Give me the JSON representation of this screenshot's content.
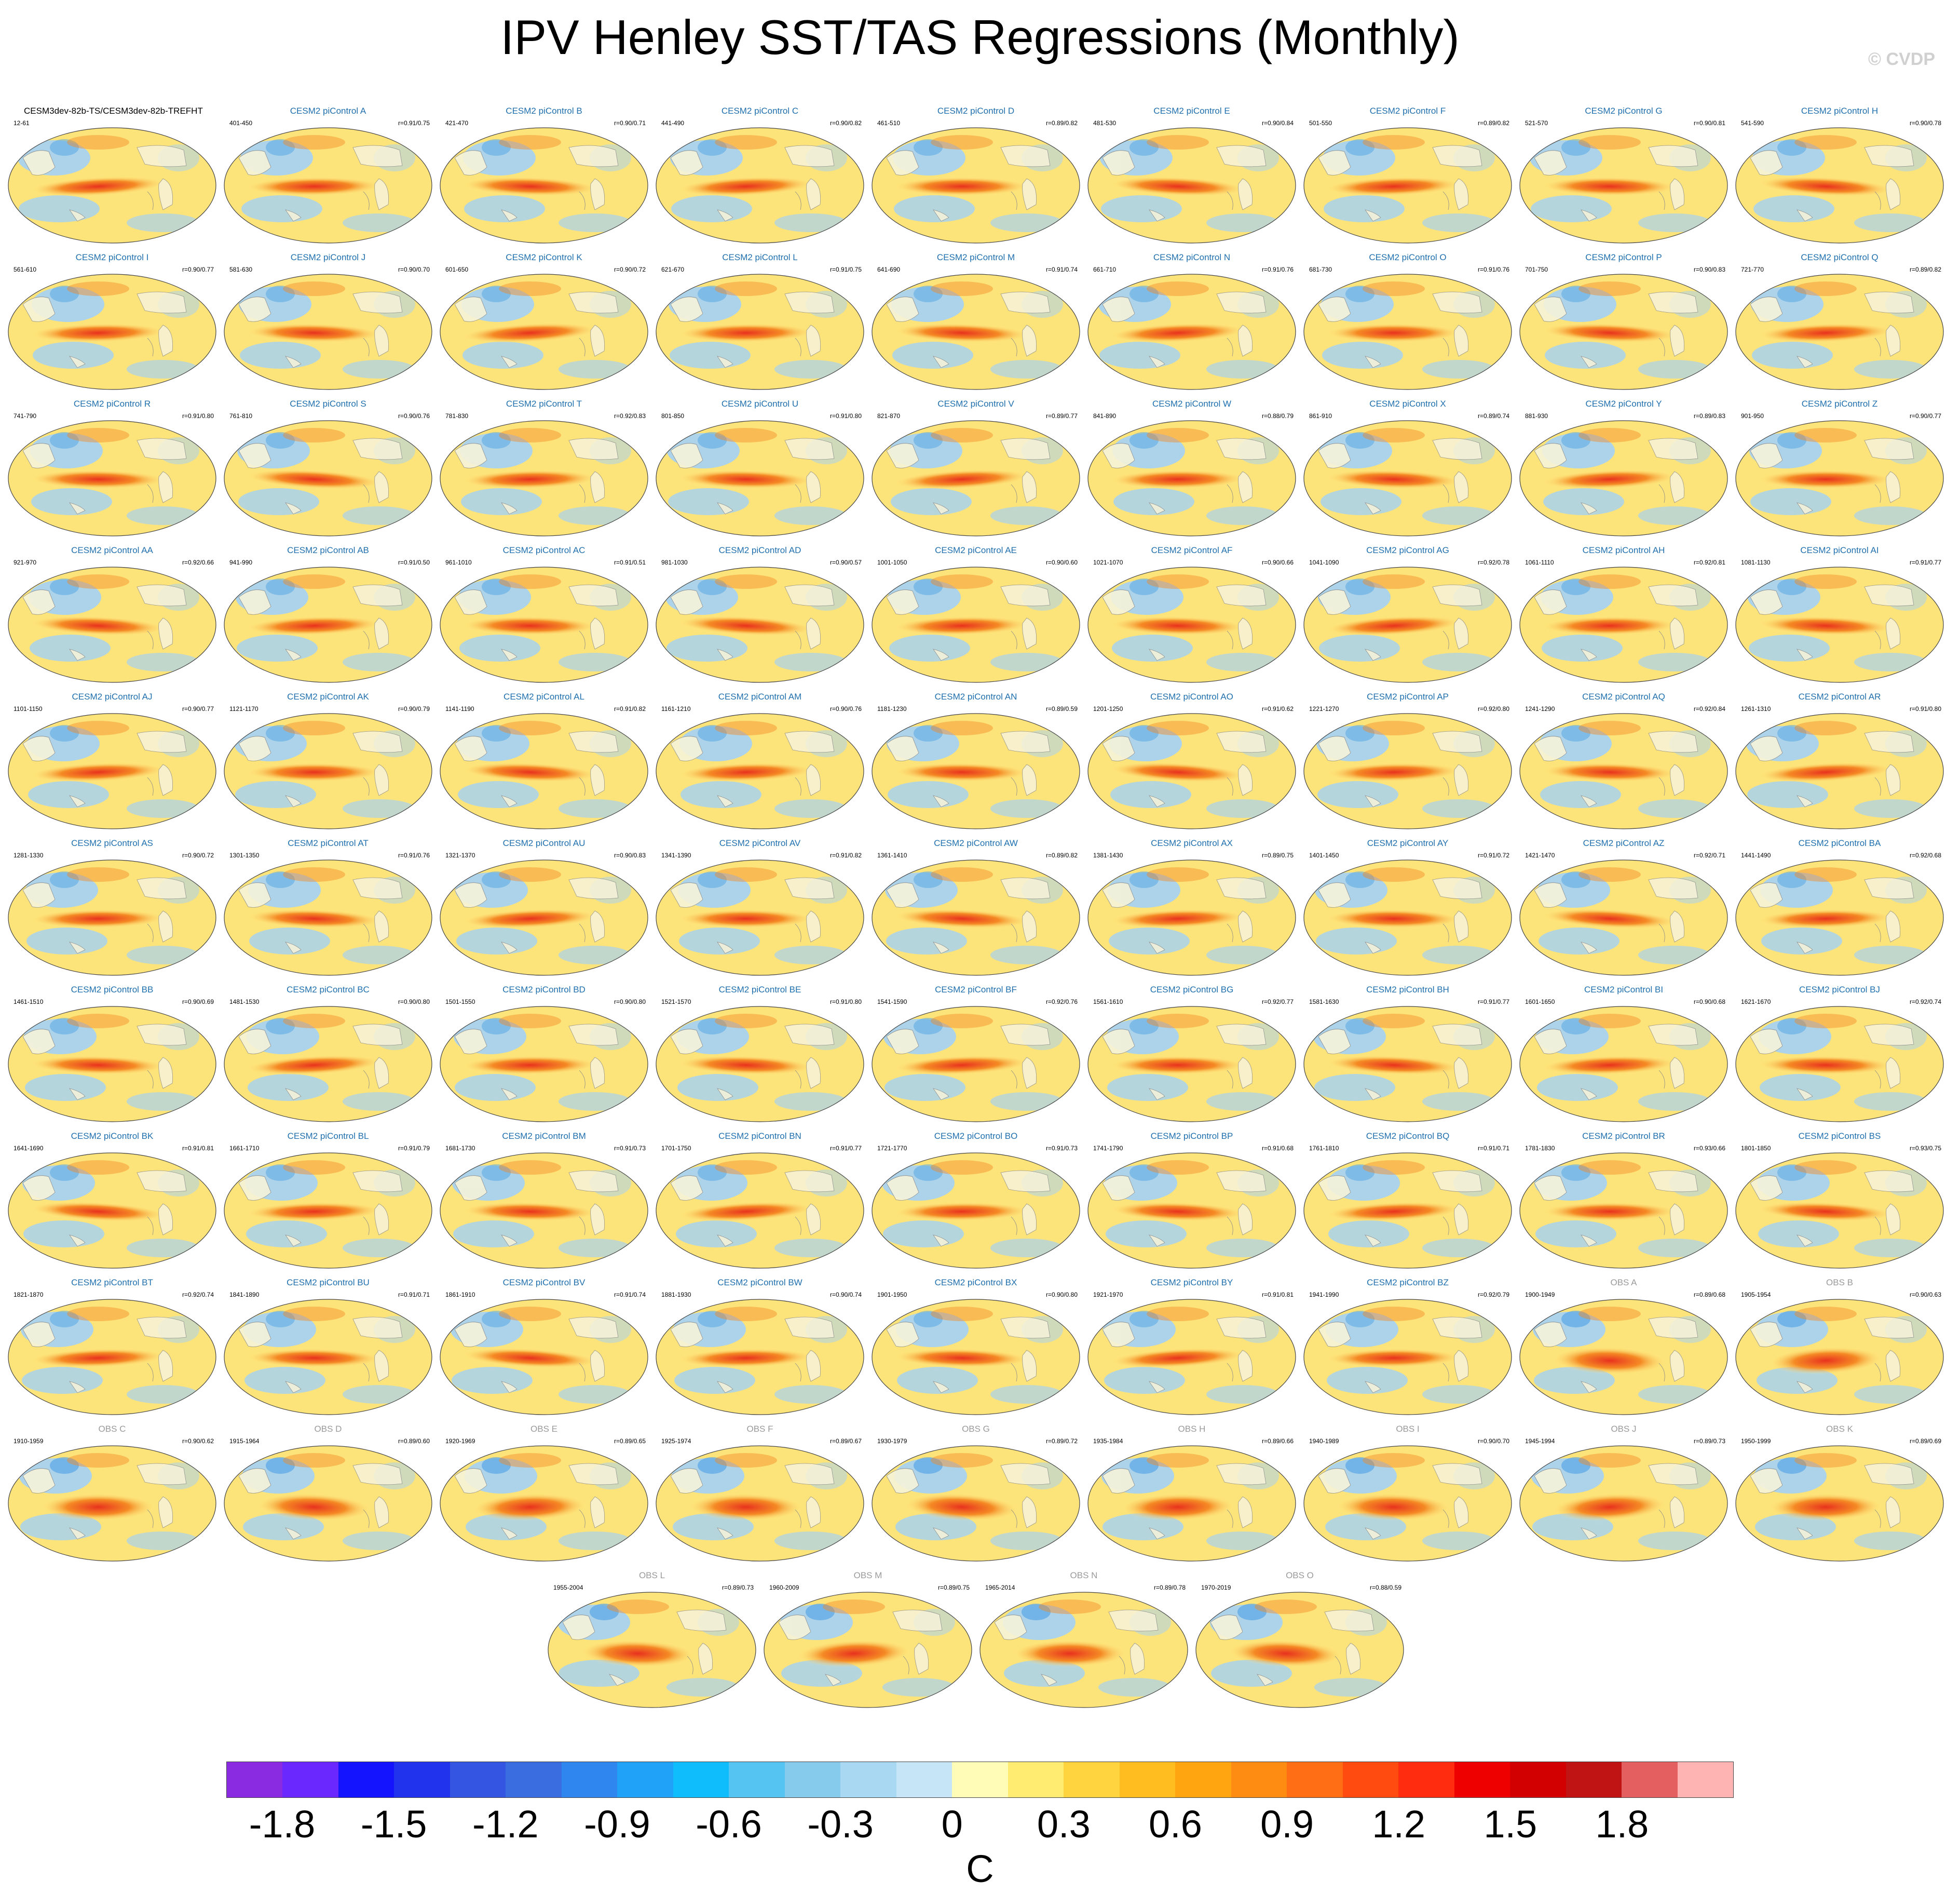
{
  "title": "IPV Henley SST/TAS Regressions (Monthly)",
  "watermark": "© CVDP",
  "colors": {
    "obs_title": "#9a9a9a",
    "model_title": "#1f6fae",
    "land": "#f6f3da",
    "ocean_warm": "#fde47a",
    "ocean_cool": "#a8d2ef",
    "enso_core": "#e8321e",
    "enso_edge": "#f58a24"
  },
  "colorbar": {
    "colors": [
      "#8a2be2",
      "#6a28ff",
      "#1414ff",
      "#2233ee",
      "#3355e2",
      "#3a6de0",
      "#2e86ee",
      "#1fa2f7",
      "#10bdfc",
      "#55c4f2",
      "#86caec",
      "#a9d8f3",
      "#c6e6f8",
      "#fffcb8",
      "#ffec70",
      "#ffd43e",
      "#ffbd20",
      "#ffa510",
      "#ff8c12",
      "#ff6e14",
      "#ff4a10",
      "#ff2c10",
      "#ee0000",
      "#d20000",
      "#c01414",
      "#e46060",
      "#ffb4b4"
    ],
    "ticks": [
      "-1.8",
      "-1.5",
      "-1.2",
      "-0.9",
      "-0.6",
      "-0.3",
      "0",
      "0.3",
      "0.6",
      "0.9",
      "1.2",
      "1.5",
      "1.8"
    ],
    "units": "C"
  },
  "panels": [
    {
      "title": "CESM3dev-82b-TS/CESM3dev-82b-TREFHT",
      "years": "12-61",
      "r": ""
    },
    {
      "title": "CESM2 piControl A",
      "years": "401-450",
      "r": "r=0.91/0.75"
    },
    {
      "title": "CESM2 piControl B",
      "years": "421-470",
      "r": "r=0.90/0.71"
    },
    {
      "title": "CESM2 piControl C",
      "years": "441-490",
      "r": "r=0.90/0.82"
    },
    {
      "title": "CESM2 piControl D",
      "years": "461-510",
      "r": "r=0.89/0.82"
    },
    {
      "title": "CESM2 piControl E",
      "years": "481-530",
      "r": "r=0.90/0.84"
    },
    {
      "title": "CESM2 piControl F",
      "years": "501-550",
      "r": "r=0.89/0.82"
    },
    {
      "title": "CESM2 piControl G",
      "years": "521-570",
      "r": "r=0.90/0.81"
    },
    {
      "title": "CESM2 piControl H",
      "years": "541-590",
      "r": "r=0.90/0.78"
    },
    {
      "title": "CESM2 piControl I",
      "years": "561-610",
      "r": "r=0.90/0.77"
    },
    {
      "title": "CESM2 piControl J",
      "years": "581-630",
      "r": "r=0.90/0.70"
    },
    {
      "title": "CESM2 piControl K",
      "years": "601-650",
      "r": "r=0.90/0.72"
    },
    {
      "title": "CESM2 piControl L",
      "years": "621-670",
      "r": "r=0.91/0.75"
    },
    {
      "title": "CESM2 piControl M",
      "years": "641-690",
      "r": "r=0.91/0.74"
    },
    {
      "title": "CESM2 piControl N",
      "years": "661-710",
      "r": "r=0.91/0.76"
    },
    {
      "title": "CESM2 piControl O",
      "years": "681-730",
      "r": "r=0.91/0.76"
    },
    {
      "title": "CESM2 piControl P",
      "years": "701-750",
      "r": "r=0.90/0.83"
    },
    {
      "title": "CESM2 piControl Q",
      "years": "721-770",
      "r": "r=0.89/0.82"
    },
    {
      "title": "CESM2 piControl R",
      "years": "741-790",
      "r": "r=0.91/0.80"
    },
    {
      "title": "CESM2 piControl S",
      "years": "761-810",
      "r": "r=0.90/0.76"
    },
    {
      "title": "CESM2 piControl T",
      "years": "781-830",
      "r": "r=0.92/0.83"
    },
    {
      "title": "CESM2 piControl U",
      "years": "801-850",
      "r": "r=0.91/0.80"
    },
    {
      "title": "CESM2 piControl V",
      "years": "821-870",
      "r": "r=0.89/0.77"
    },
    {
      "title": "CESM2 piControl W",
      "years": "841-890",
      "r": "r=0.88/0.79"
    },
    {
      "title": "CESM2 piControl X",
      "years": "861-910",
      "r": "r=0.89/0.74"
    },
    {
      "title": "CESM2 piControl Y",
      "years": "881-930",
      "r": "r=0.89/0.83"
    },
    {
      "title": "CESM2 piControl Z",
      "years": "901-950",
      "r": "r=0.90/0.77"
    },
    {
      "title": "CESM2 piControl AA",
      "years": "921-970",
      "r": "r=0.92/0.66"
    },
    {
      "title": "CESM2 piControl AB",
      "years": "941-990",
      "r": "r=0.91/0.50"
    },
    {
      "title": "CESM2 piControl AC",
      "years": "961-1010",
      "r": "r=0.91/0.51"
    },
    {
      "title": "CESM2 piControl AD",
      "years": "981-1030",
      "r": "r=0.90/0.57"
    },
    {
      "title": "CESM2 piControl AE",
      "years": "1001-1050",
      "r": "r=0.90/0.60"
    },
    {
      "title": "CESM2 piControl AF",
      "years": "1021-1070",
      "r": "r=0.90/0.66"
    },
    {
      "title": "CESM2 piControl AG",
      "years": "1041-1090",
      "r": "r=0.92/0.78"
    },
    {
      "title": "CESM2 piControl AH",
      "years": "1061-1110",
      "r": "r=0.92/0.81"
    },
    {
      "title": "CESM2 piControl AI",
      "years": "1081-1130",
      "r": "r=0.91/0.77"
    },
    {
      "title": "CESM2 piControl AJ",
      "years": "1101-1150",
      "r": "r=0.90/0.77"
    },
    {
      "title": "CESM2 piControl AK",
      "years": "1121-1170",
      "r": "r=0.90/0.79"
    },
    {
      "title": "CESM2 piControl AL",
      "years": "1141-1190",
      "r": "r=0.91/0.82"
    },
    {
      "title": "CESM2 piControl AM",
      "years": "1161-1210",
      "r": "r=0.90/0.76"
    },
    {
      "title": "CESM2 piControl AN",
      "years": "1181-1230",
      "r": "r=0.89/0.59"
    },
    {
      "title": "CESM2 piControl AO",
      "years": "1201-1250",
      "r": "r=0.91/0.62"
    },
    {
      "title": "CESM2 piControl AP",
      "years": "1221-1270",
      "r": "r=0.92/0.80"
    },
    {
      "title": "CESM2 piControl AQ",
      "years": "1241-1290",
      "r": "r=0.92/0.84"
    },
    {
      "title": "CESM2 piControl AR",
      "years": "1261-1310",
      "r": "r=0.91/0.80"
    },
    {
      "title": "CESM2 piControl AS",
      "years": "1281-1330",
      "r": "r=0.90/0.72"
    },
    {
      "title": "CESM2 piControl AT",
      "years": "1301-1350",
      "r": "r=0.91/0.76"
    },
    {
      "title": "CESM2 piControl AU",
      "years": "1321-1370",
      "r": "r=0.90/0.83"
    },
    {
      "title": "CESM2 piControl AV",
      "years": "1341-1390",
      "r": "r=0.91/0.82"
    },
    {
      "title": "CESM2 piControl AW",
      "years": "1361-1410",
      "r": "r=0.89/0.82"
    },
    {
      "title": "CESM2 piControl AX",
      "years": "1381-1430",
      "r": "r=0.89/0.75"
    },
    {
      "title": "CESM2 piControl AY",
      "years": "1401-1450",
      "r": "r=0.91/0.72"
    },
    {
      "title": "CESM2 piControl AZ",
      "years": "1421-1470",
      "r": "r=0.92/0.71"
    },
    {
      "title": "CESM2 piControl BA",
      "years": "1441-1490",
      "r": "r=0.92/0.68"
    },
    {
      "title": "CESM2 piControl BB",
      "years": "1461-1510",
      "r": "r=0.90/0.69"
    },
    {
      "title": "CESM2 piControl BC",
      "years": "1481-1530",
      "r": "r=0.90/0.80"
    },
    {
      "title": "CESM2 piControl BD",
      "years": "1501-1550",
      "r": "r=0.90/0.80"
    },
    {
      "title": "CESM2 piControl BE",
      "years": "1521-1570",
      "r": "r=0.91/0.80"
    },
    {
      "title": "CESM2 piControl BF",
      "years": "1541-1590",
      "r": "r=0.92/0.76"
    },
    {
      "title": "CESM2 piControl BG",
      "years": "1561-1610",
      "r": "r=0.92/0.77"
    },
    {
      "title": "CESM2 piControl BH",
      "years": "1581-1630",
      "r": "r=0.91/0.77"
    },
    {
      "title": "CESM2 piControl BI",
      "years": "1601-1650",
      "r": "r=0.90/0.68"
    },
    {
      "title": "CESM2 piControl BJ",
      "years": "1621-1670",
      "r": "r=0.92/0.74"
    },
    {
      "title": "CESM2 piControl BK",
      "years": "1641-1690",
      "r": "r=0.91/0.81"
    },
    {
      "title": "CESM2 piControl BL",
      "years": "1661-1710",
      "r": "r=0.91/0.79"
    },
    {
      "title": "CESM2 piControl BM",
      "years": "1681-1730",
      "r": "r=0.91/0.73"
    },
    {
      "title": "CESM2 piControl BN",
      "years": "1701-1750",
      "r": "r=0.91/0.77"
    },
    {
      "title": "CESM2 piControl BO",
      "years": "1721-1770",
      "r": "r=0.91/0.73"
    },
    {
      "title": "CESM2 piControl BP",
      "years": "1741-1790",
      "r": "r=0.91/0.68"
    },
    {
      "title": "CESM2 piControl BQ",
      "years": "1761-1810",
      "r": "r=0.91/0.71"
    },
    {
      "title": "CESM2 piControl BR",
      "years": "1781-1830",
      "r": "r=0.93/0.66"
    },
    {
      "title": "CESM2 piControl BS",
      "years": "1801-1850",
      "r": "r=0.93/0.75"
    },
    {
      "title": "CESM2 piControl BT",
      "years": "1821-1870",
      "r": "r=0.92/0.74"
    },
    {
      "title": "CESM2 piControl BU",
      "years": "1841-1890",
      "r": "r=0.91/0.71"
    },
    {
      "title": "CESM2 piControl BV",
      "years": "1861-1910",
      "r": "r=0.91/0.74"
    },
    {
      "title": "CESM2 piControl BW",
      "years": "1881-1930",
      "r": "r=0.90/0.74"
    },
    {
      "title": "CESM2 piControl BX",
      "years": "1901-1950",
      "r": "r=0.90/0.80"
    },
    {
      "title": "CESM2 piControl BY",
      "years": "1921-1970",
      "r": "r=0.91/0.81"
    },
    {
      "title": "CESM2 piControl BZ",
      "years": "1941-1990",
      "r": "r=0.92/0.79"
    },
    {
      "title": "OBS A",
      "years": "1900-1949",
      "r": "r=0.89/0.68",
      "obs": true
    },
    {
      "title": "OBS B",
      "years": "1905-1954",
      "r": "r=0.90/0.63",
      "obs": true
    },
    {
      "title": "OBS C",
      "years": "1910-1959",
      "r": "r=0.90/0.62",
      "obs": true
    },
    {
      "title": "OBS D",
      "years": "1915-1964",
      "r": "r=0.89/0.60",
      "obs": true
    },
    {
      "title": "OBS E",
      "years": "1920-1969",
      "r": "r=0.89/0.65",
      "obs": true
    },
    {
      "title": "OBS F",
      "years": "1925-1974",
      "r": "r=0.89/0.67",
      "obs": true
    },
    {
      "title": "OBS G",
      "years": "1930-1979",
      "r": "r=0.89/0.72",
      "obs": true
    },
    {
      "title": "OBS H",
      "years": "1935-1984",
      "r": "r=0.89/0.66",
      "obs": true
    },
    {
      "title": "OBS I",
      "years": "1940-1989",
      "r": "r=0.90/0.70",
      "obs": true
    },
    {
      "title": "OBS J",
      "years": "1945-1994",
      "r": "r=0.89/0.73",
      "obs": true
    },
    {
      "title": "OBS K",
      "years": "1950-1999",
      "r": "r=0.89/0.69",
      "obs": true
    },
    {
      "title": "OBS L",
      "years": "1955-2004",
      "r": "r=0.89/0.73",
      "obs": true
    },
    {
      "title": "OBS M",
      "years": "1960-2009",
      "r": "r=0.89/0.75",
      "obs": true
    },
    {
      "title": "OBS N",
      "years": "1965-2014",
      "r": "r=0.89/0.78",
      "obs": true
    },
    {
      "title": "OBS O",
      "years": "1970-2019",
      "r": "r=0.88/0.59",
      "obs": true
    }
  ]
}
